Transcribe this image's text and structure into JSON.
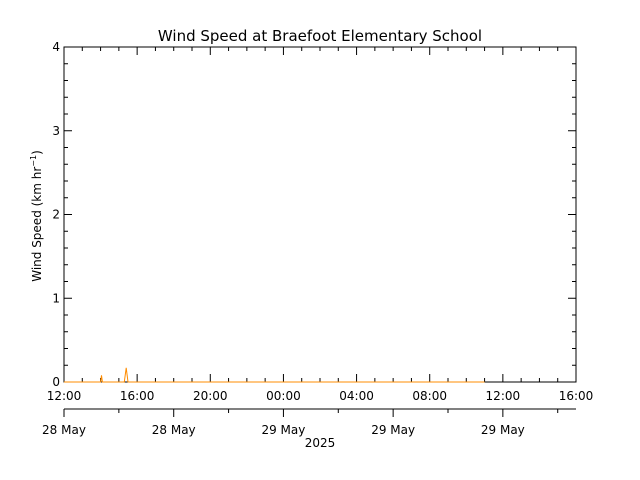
{
  "chart_data": {
    "type": "line",
    "title": "Wind Speed at Braefoot Elementary School",
    "ylabel_main": "Wind Speed (km hr",
    "ylabel_sup": "−1",
    "ylabel_close": ")",
    "xlabel": "2025",
    "ylim": [
      0,
      4
    ],
    "yticks": [
      "0",
      "1",
      "2",
      "3",
      "4"
    ],
    "xrange_hours": [
      0,
      28
    ],
    "xticks": [
      {
        "h": 0,
        "label": "12:00"
      },
      {
        "h": 4,
        "label": "16:00"
      },
      {
        "h": 8,
        "label": "20:00"
      },
      {
        "h": 12,
        "label": "00:00"
      },
      {
        "h": 16,
        "label": "04:00"
      },
      {
        "h": 20,
        "label": "08:00"
      },
      {
        "h": 24,
        "label": "12:00"
      },
      {
        "h": 28,
        "label": "16:00"
      }
    ],
    "date_ticks": [
      {
        "h": 0,
        "label": "28 May"
      },
      {
        "h": 6,
        "label": "28 May"
      },
      {
        "h": 12,
        "label": "29 May"
      },
      {
        "h": 18,
        "label": "29 May"
      },
      {
        "h": 24,
        "label": "29 May"
      }
    ],
    "series": [
      {
        "color": "#ff8c00",
        "x": [
          0,
          2.0,
          2.05,
          2.1,
          3.3,
          3.4,
          3.5,
          23.0
        ],
        "y": [
          0,
          0,
          0.08,
          0,
          0,
          0.17,
          0,
          0
        ]
      }
    ],
    "grid": false
  }
}
